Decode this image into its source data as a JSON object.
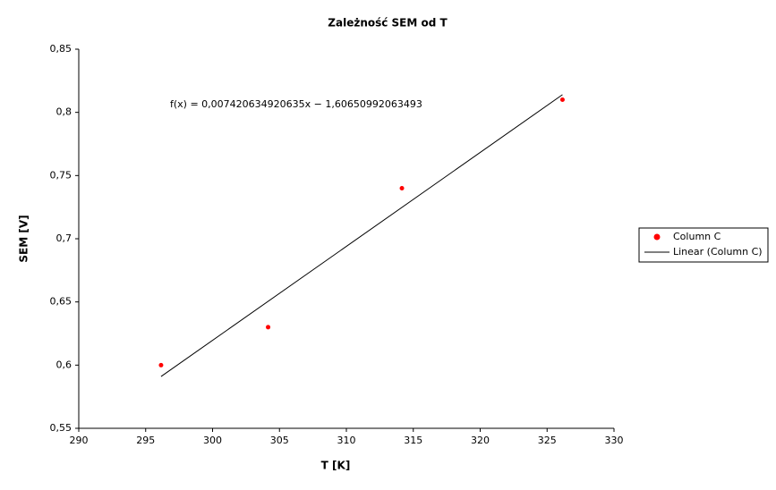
{
  "chart_data": {
    "type": "scatter",
    "title": "Zależność SEM od T",
    "x_label": "T [K]",
    "y_label": "SEM [V]",
    "annotation": "f(x) = 0,007420634920635x − 1,60650992063493",
    "xlim": [
      290,
      330
    ],
    "xticks": [
      290,
      295,
      300,
      305,
      310,
      315,
      320,
      325,
      330
    ],
    "ylim": [
      0.55,
      0.85
    ],
    "yticks": [
      {
        "value": 0.55,
        "label": "0,55"
      },
      {
        "value": 0.6,
        "label": "0,6"
      },
      {
        "value": 0.65,
        "label": "0,65"
      },
      {
        "value": 0.7,
        "label": "0,7"
      },
      {
        "value": 0.75,
        "label": "0,75"
      },
      {
        "value": 0.8,
        "label": "0,8"
      },
      {
        "value": 0.85,
        "label": "0,85"
      }
    ],
    "grid": false,
    "legend": "right",
    "series": [
      {
        "name": "Column C",
        "color": "#ff0000",
        "mode": "markers",
        "x": [
          296.15,
          304.15,
          314.15,
          326.15
        ],
        "values": [
          0.6,
          0.63,
          0.74,
          0.81
        ]
      },
      {
        "name": "Linear (Column C)",
        "color": "#000000",
        "mode": "line",
        "x": [
          296.15,
          326.15
        ],
        "values": [
          0.591,
          0.814
        ]
      }
    ]
  }
}
